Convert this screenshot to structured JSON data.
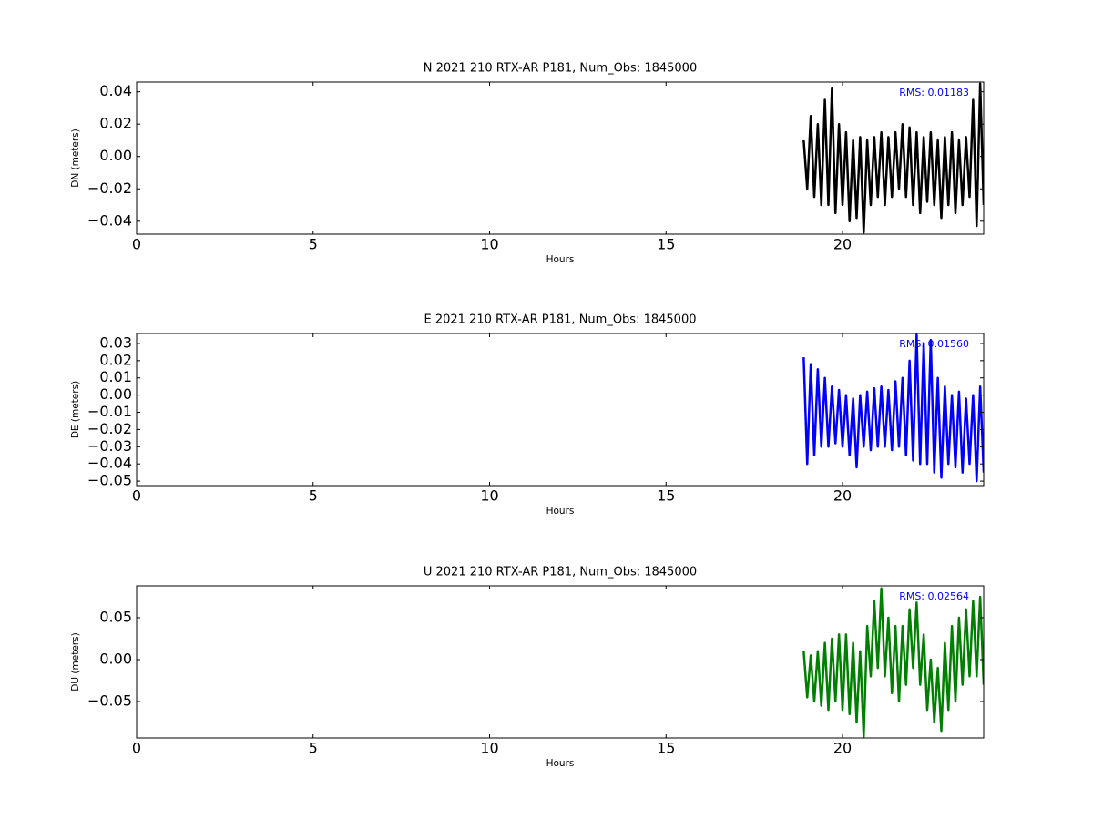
{
  "chart_data": [
    {
      "type": "line",
      "title": "N 2021 210 RTX-AR  P181, Num_Obs: 1845000",
      "x_label": "Hours",
      "y_label": "DN (meters)",
      "annotation": "RMS:  0.01183",
      "xlim": [
        0,
        24
      ],
      "xticks": [
        0,
        5,
        10,
        15,
        20
      ],
      "ylim": [
        -0.048,
        0.046
      ],
      "yticks": [
        {
          "value": -0.04,
          "label": "−0.04"
        },
        {
          "value": -0.02,
          "label": "−0.02"
        },
        {
          "value": 0,
          "label": "0.00"
        },
        {
          "value": 0.02,
          "label": "0.02"
        },
        {
          "value": 0.04,
          "label": "0.04"
        }
      ],
      "x": [
        18.9,
        19.0,
        19.1,
        19.2,
        19.3,
        19.4,
        19.5,
        19.6,
        19.7,
        19.8,
        19.9,
        20.0,
        20.1,
        20.2,
        20.3,
        20.4,
        20.5,
        20.6,
        20.7,
        20.8,
        20.9,
        21.0,
        21.1,
        21.2,
        21.3,
        21.4,
        21.5,
        21.6,
        21.7,
        21.8,
        21.9,
        22.0,
        22.1,
        22.2,
        22.3,
        22.4,
        22.5,
        22.6,
        22.7,
        22.8,
        22.9,
        23.0,
        23.1,
        23.2,
        23.3,
        23.4,
        23.5,
        23.6,
        23.7,
        23.8,
        23.9,
        24.0
      ],
      "series": [
        {
          "color": "#000000",
          "values": [
            0.01,
            -0.02,
            0.025,
            -0.025,
            0.02,
            -0.03,
            0.035,
            -0.03,
            0.042,
            -0.035,
            0.02,
            -0.03,
            0.015,
            -0.04,
            0.01,
            -0.038,
            0.012,
            -0.047,
            0.01,
            -0.03,
            0.012,
            -0.025,
            0.015,
            -0.03,
            0.012,
            -0.025,
            0.015,
            -0.02,
            0.02,
            -0.025,
            0.018,
            -0.03,
            0.015,
            -0.035,
            0.012,
            -0.028,
            0.015,
            -0.03,
            0.01,
            -0.038,
            0.012,
            -0.03,
            0.015,
            -0.035,
            0.01,
            -0.03,
            0.012,
            -0.025,
            0.035,
            -0.043,
            0.045,
            -0.03
          ]
        }
      ]
    },
    {
      "type": "line",
      "title": "E 2021 210 RTX-AR  P181, Num_Obs: 1845000",
      "x_label": "Hours",
      "y_label": "DE (meters)",
      "annotation": "RMS:  0.01560",
      "xlim": [
        0,
        24
      ],
      "xticks": [
        0,
        5,
        10,
        15,
        20
      ],
      "ylim": [
        -0.0526,
        0.0358
      ],
      "yticks": [
        {
          "value": -0.05,
          "label": "−0.05"
        },
        {
          "value": -0.04,
          "label": "−0.04"
        },
        {
          "value": -0.03,
          "label": "−0.03"
        },
        {
          "value": -0.02,
          "label": "−0.02"
        },
        {
          "value": -0.01,
          "label": "−0.01"
        },
        {
          "value": 0,
          "label": "0.00"
        },
        {
          "value": 0.01,
          "label": "0.01"
        },
        {
          "value": 0.02,
          "label": "0.02"
        },
        {
          "value": 0.03,
          "label": "0.03"
        }
      ],
      "x": [
        18.9,
        19.0,
        19.1,
        19.2,
        19.3,
        19.4,
        19.5,
        19.6,
        19.7,
        19.8,
        19.9,
        20.0,
        20.1,
        20.2,
        20.3,
        20.4,
        20.5,
        20.6,
        20.7,
        20.8,
        20.9,
        21.0,
        21.1,
        21.2,
        21.3,
        21.4,
        21.5,
        21.6,
        21.7,
        21.8,
        21.9,
        22.0,
        22.1,
        22.2,
        22.3,
        22.4,
        22.5,
        22.6,
        22.7,
        22.8,
        22.9,
        23.0,
        23.1,
        23.2,
        23.3,
        23.4,
        23.5,
        23.6,
        23.7,
        23.8,
        23.9,
        24.0
      ],
      "series": [
        {
          "color": "#0000ff",
          "values": [
            0.022,
            -0.04,
            0.018,
            -0.035,
            0.015,
            -0.03,
            0.01,
            -0.03,
            0.005,
            -0.028,
            0.003,
            -0.03,
            0.0,
            -0.035,
            -0.002,
            -0.042,
            0.0,
            -0.03,
            0.002,
            -0.032,
            0.004,
            -0.03,
            0.005,
            -0.03,
            0.003,
            -0.032,
            0.008,
            -0.03,
            0.01,
            -0.035,
            0.02,
            -0.038,
            0.035,
            -0.04,
            0.03,
            -0.04,
            0.032,
            -0.045,
            0.01,
            -0.048,
            0.005,
            -0.04,
            0.0,
            -0.042,
            0.002,
            -0.045,
            -0.002,
            -0.04,
            0.0,
            -0.05,
            0.005,
            -0.045
          ]
        }
      ]
    },
    {
      "type": "line",
      "title": "U 2021 210 RTX-AR  P181, Num_Obs: 1845000",
      "x_label": "Hours",
      "y_label": "DU (meters)",
      "annotation": "RMS:  0.02564",
      "xlim": [
        0,
        24
      ],
      "xticks": [
        0,
        5,
        10,
        15,
        20
      ],
      "ylim": [
        -0.0935,
        0.088
      ],
      "yticks": [
        {
          "value": -0.05,
          "label": "−0.05"
        },
        {
          "value": 0,
          "label": "0.00"
        },
        {
          "value": 0.05,
          "label": "0.05"
        }
      ],
      "x": [
        18.9,
        19.0,
        19.1,
        19.2,
        19.3,
        19.4,
        19.5,
        19.6,
        19.7,
        19.8,
        19.9,
        20.0,
        20.1,
        20.2,
        20.3,
        20.4,
        20.5,
        20.6,
        20.7,
        20.8,
        20.9,
        21.0,
        21.1,
        21.2,
        21.3,
        21.4,
        21.5,
        21.6,
        21.7,
        21.8,
        21.9,
        22.0,
        22.1,
        22.2,
        22.3,
        22.4,
        22.5,
        22.6,
        22.7,
        22.8,
        22.9,
        23.0,
        23.1,
        23.2,
        23.3,
        23.4,
        23.5,
        23.6,
        23.7,
        23.8,
        23.9,
        24.0
      ],
      "series": [
        {
          "color": "#008000",
          "values": [
            0.01,
            -0.045,
            0.005,
            -0.05,
            0.01,
            -0.055,
            0.02,
            -0.06,
            0.025,
            -0.05,
            0.03,
            -0.06,
            0.03,
            -0.065,
            0.02,
            -0.075,
            0.01,
            -0.092,
            0.04,
            -0.02,
            0.07,
            -0.01,
            0.085,
            -0.02,
            0.05,
            -0.04,
            0.04,
            -0.05,
            0.04,
            -0.03,
            0.06,
            -0.01,
            0.068,
            -0.03,
            0.03,
            -0.06,
            0.0,
            -0.075,
            -0.01,
            -0.085,
            0.02,
            -0.06,
            0.04,
            -0.05,
            0.05,
            -0.03,
            0.06,
            -0.02,
            0.07,
            -0.02,
            0.075,
            -0.03
          ]
        }
      ]
    }
  ]
}
